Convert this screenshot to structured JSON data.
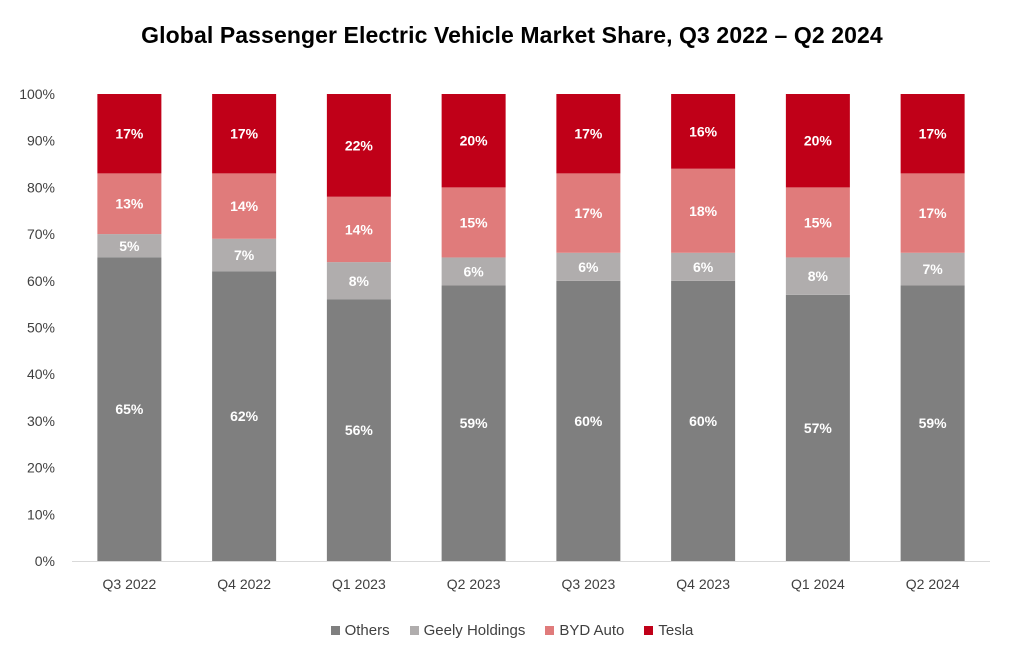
{
  "chart_data": {
    "type": "bar",
    "stacked": true,
    "title": "Global Passenger Electric Vehicle Market Share, Q3 2022 – Q2 2024",
    "xlabel": "",
    "ylabel": "",
    "ylim": [
      0,
      100
    ],
    "yticks": [
      "0%",
      "10%",
      "20%",
      "30%",
      "40%",
      "50%",
      "60%",
      "70%",
      "80%",
      "90%",
      "100%"
    ],
    "grid": false,
    "legend_position": "bottom",
    "categories": [
      "Q3 2022",
      "Q4 2022",
      "Q1 2023",
      "Q2 2023",
      "Q3 2023",
      "Q4 2023",
      "Q1 2024",
      "Q2 2024"
    ],
    "series": [
      {
        "name": "Others",
        "color": "#7f7f7f",
        "label_color": "#ffffff",
        "values": [
          65,
          62,
          56,
          59,
          60,
          60,
          57,
          59
        ]
      },
      {
        "name": "Geely Holdings",
        "color": "#b0adad",
        "label_color": "#ffffff",
        "values": [
          5,
          7,
          8,
          6,
          6,
          6,
          8,
          7
        ]
      },
      {
        "name": "BYD Auto",
        "color": "#e07b7b",
        "label_color": "#ffffff",
        "values": [
          13,
          14,
          14,
          15,
          17,
          18,
          15,
          17
        ]
      },
      {
        "name": "Tesla",
        "color": "#c00018",
        "label_color": "#ffffff",
        "values": [
          17,
          17,
          22,
          20,
          17,
          16,
          20,
          17
        ]
      }
    ]
  }
}
